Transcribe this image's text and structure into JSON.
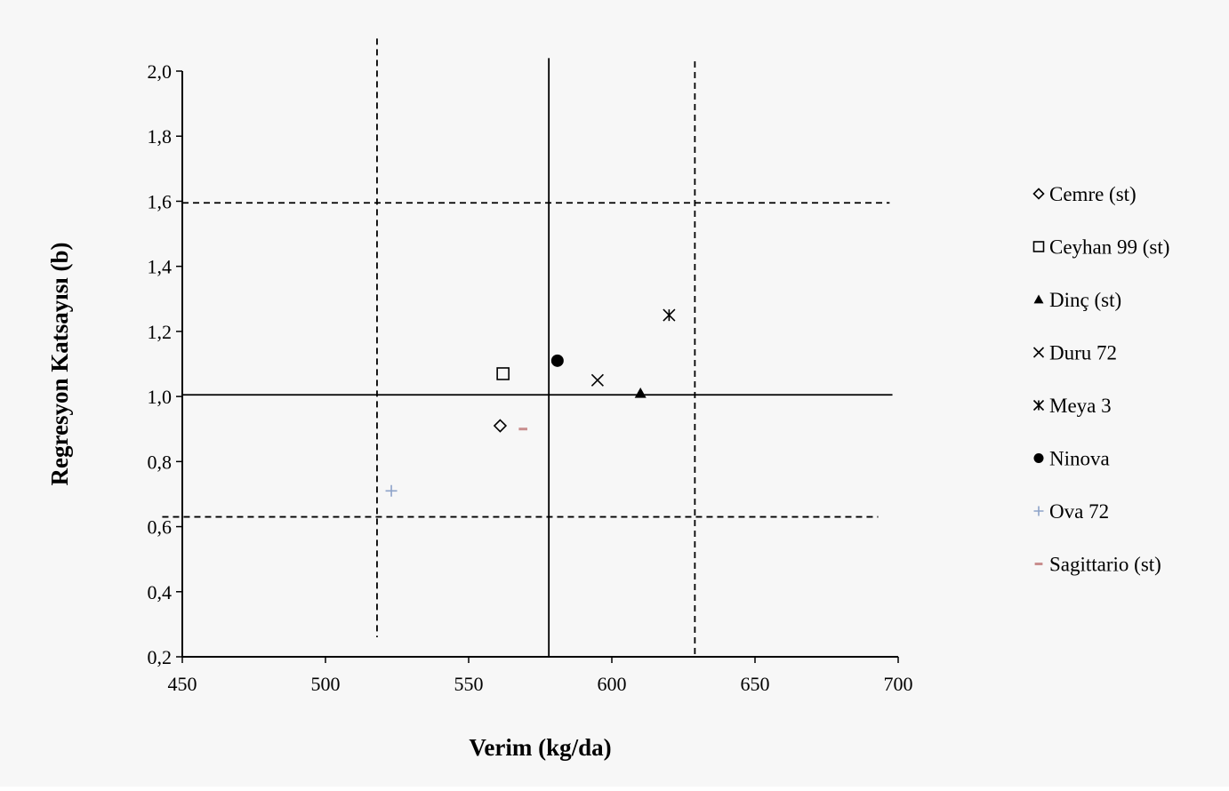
{
  "chart_data": {
    "type": "scatter",
    "title": "",
    "xlabel": "Verim (kg/da)",
    "ylabel": "Regresyon Katsayısı (b)",
    "xlim": [
      450,
      700
    ],
    "ylim": [
      0.2,
      2.0
    ],
    "x_ticks": [
      "450",
      "500",
      "550",
      "600",
      "650",
      "700"
    ],
    "y_ticks": [
      "0,2",
      "0,4",
      "0,6",
      "0,8",
      "1,0",
      "1,2",
      "1,4",
      "1,6",
      "1,8",
      "2,0"
    ],
    "grid": false,
    "legend_position": "right",
    "series": [
      {
        "name": "Cemre (st)",
        "marker": "diamond-open",
        "color": "#000000",
        "x": 561,
        "y": 0.91
      },
      {
        "name": "Ceyhan 99 (st)",
        "marker": "square-open",
        "color": "#000000",
        "x": 562,
        "y": 1.07
      },
      {
        "name": "Dinç (st)",
        "marker": "triangle-filled",
        "color": "#000000",
        "x": 610,
        "y": 1.01
      },
      {
        "name": "Duru 72",
        "marker": "x",
        "color": "#000000",
        "x": 595,
        "y": 1.05
      },
      {
        "name": "Meya 3",
        "marker": "asterisk",
        "color": "#000000",
        "x": 620,
        "y": 1.25
      },
      {
        "name": "Ninova",
        "marker": "circle-filled",
        "color": "#000000",
        "x": 581,
        "y": 1.11
      },
      {
        "name": "Ova 72",
        "marker": "plus",
        "color": "#8ea3c9",
        "x": 523,
        "y": 0.71
      },
      {
        "name": "Sagittario (st)",
        "marker": "dash",
        "color": "#c98e8e",
        "x": 569,
        "y": 0.9
      }
    ],
    "reference_lines": [
      {
        "orientation": "vertical",
        "style": "solid",
        "x": 578,
        "y_range": [
          0.2,
          2.04
        ]
      },
      {
        "orientation": "horizontal",
        "style": "solid",
        "y": 1.005,
        "x_range": [
          450,
          698
        ]
      },
      {
        "orientation": "vertical",
        "style": "dashed",
        "x": 518,
        "y_range": [
          0.26,
          2.1
        ]
      },
      {
        "orientation": "vertical",
        "style": "dashed",
        "x": 629,
        "y_range": [
          0.2,
          2.03
        ]
      },
      {
        "orientation": "horizontal",
        "style": "dashed",
        "y": 1.595,
        "x_range": [
          450,
          697
        ]
      },
      {
        "orientation": "horizontal",
        "style": "dashed",
        "y": 0.63,
        "x_range": [
          443,
          693
        ]
      }
    ]
  }
}
